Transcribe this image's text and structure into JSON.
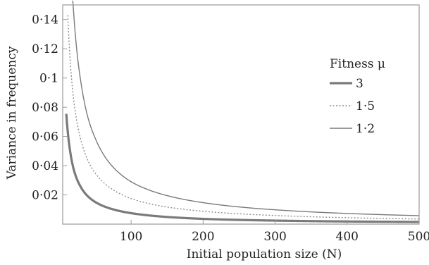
{
  "chart_data": {
    "type": "line",
    "xlabel": "Initial population size (N)",
    "ylabel": "Variance in frequency",
    "xlim": [
      5,
      500
    ],
    "ylim": [
      0,
      0.15
    ],
    "x_ticks": [
      100,
      200,
      300,
      400,
      500
    ],
    "x_tick_labels": [
      "100",
      "200",
      "300",
      "400",
      "500"
    ],
    "y_ticks": [
      0.02,
      0.04,
      0.06,
      0.08,
      0.1,
      0.12,
      0.14
    ],
    "y_tick_labels": [
      "0·02",
      "0·04",
      "0·06",
      "0·08",
      "0·1",
      "0·12",
      "0·14"
    ],
    "grid": false,
    "legend": {
      "title": "Fitness μ",
      "placement": "right",
      "entries": [
        "3",
        "1·5",
        "1·2"
      ]
    },
    "series": [
      {
        "name": "3",
        "style": "thick-solid",
        "color": "#7a7a7a",
        "x": [
          10,
          15,
          20,
          30,
          40,
          50,
          75,
          100,
          150,
          200,
          300,
          400,
          500
        ],
        "values": [
          0.0755,
          0.051,
          0.038,
          0.0255,
          0.019,
          0.0152,
          0.0101,
          0.0075,
          0.0049,
          0.0036,
          0.0024,
          0.0018,
          0.0015
        ]
      },
      {
        "name": "1·5",
        "style": "dotted",
        "color": "#8c8c8c",
        "x": [
          12,
          15,
          20,
          30,
          40,
          50,
          75,
          100,
          150,
          200,
          300,
          400,
          500
        ],
        "values": [
          0.143,
          0.115,
          0.086,
          0.058,
          0.0435,
          0.035,
          0.0235,
          0.0175,
          0.0117,
          0.0088,
          0.0059,
          0.0044,
          0.0035
        ]
      },
      {
        "name": "1·2",
        "style": "thin-solid",
        "color": "#7a7a7a",
        "x": [
          19,
          20,
          25,
          30,
          40,
          50,
          75,
          100,
          150,
          200,
          300,
          400,
          500
        ],
        "values": [
          0.153,
          0.146,
          0.117,
          0.098,
          0.073,
          0.059,
          0.039,
          0.029,
          0.0195,
          0.0147,
          0.0098,
          0.0073,
          0.0058
        ]
      }
    ]
  }
}
